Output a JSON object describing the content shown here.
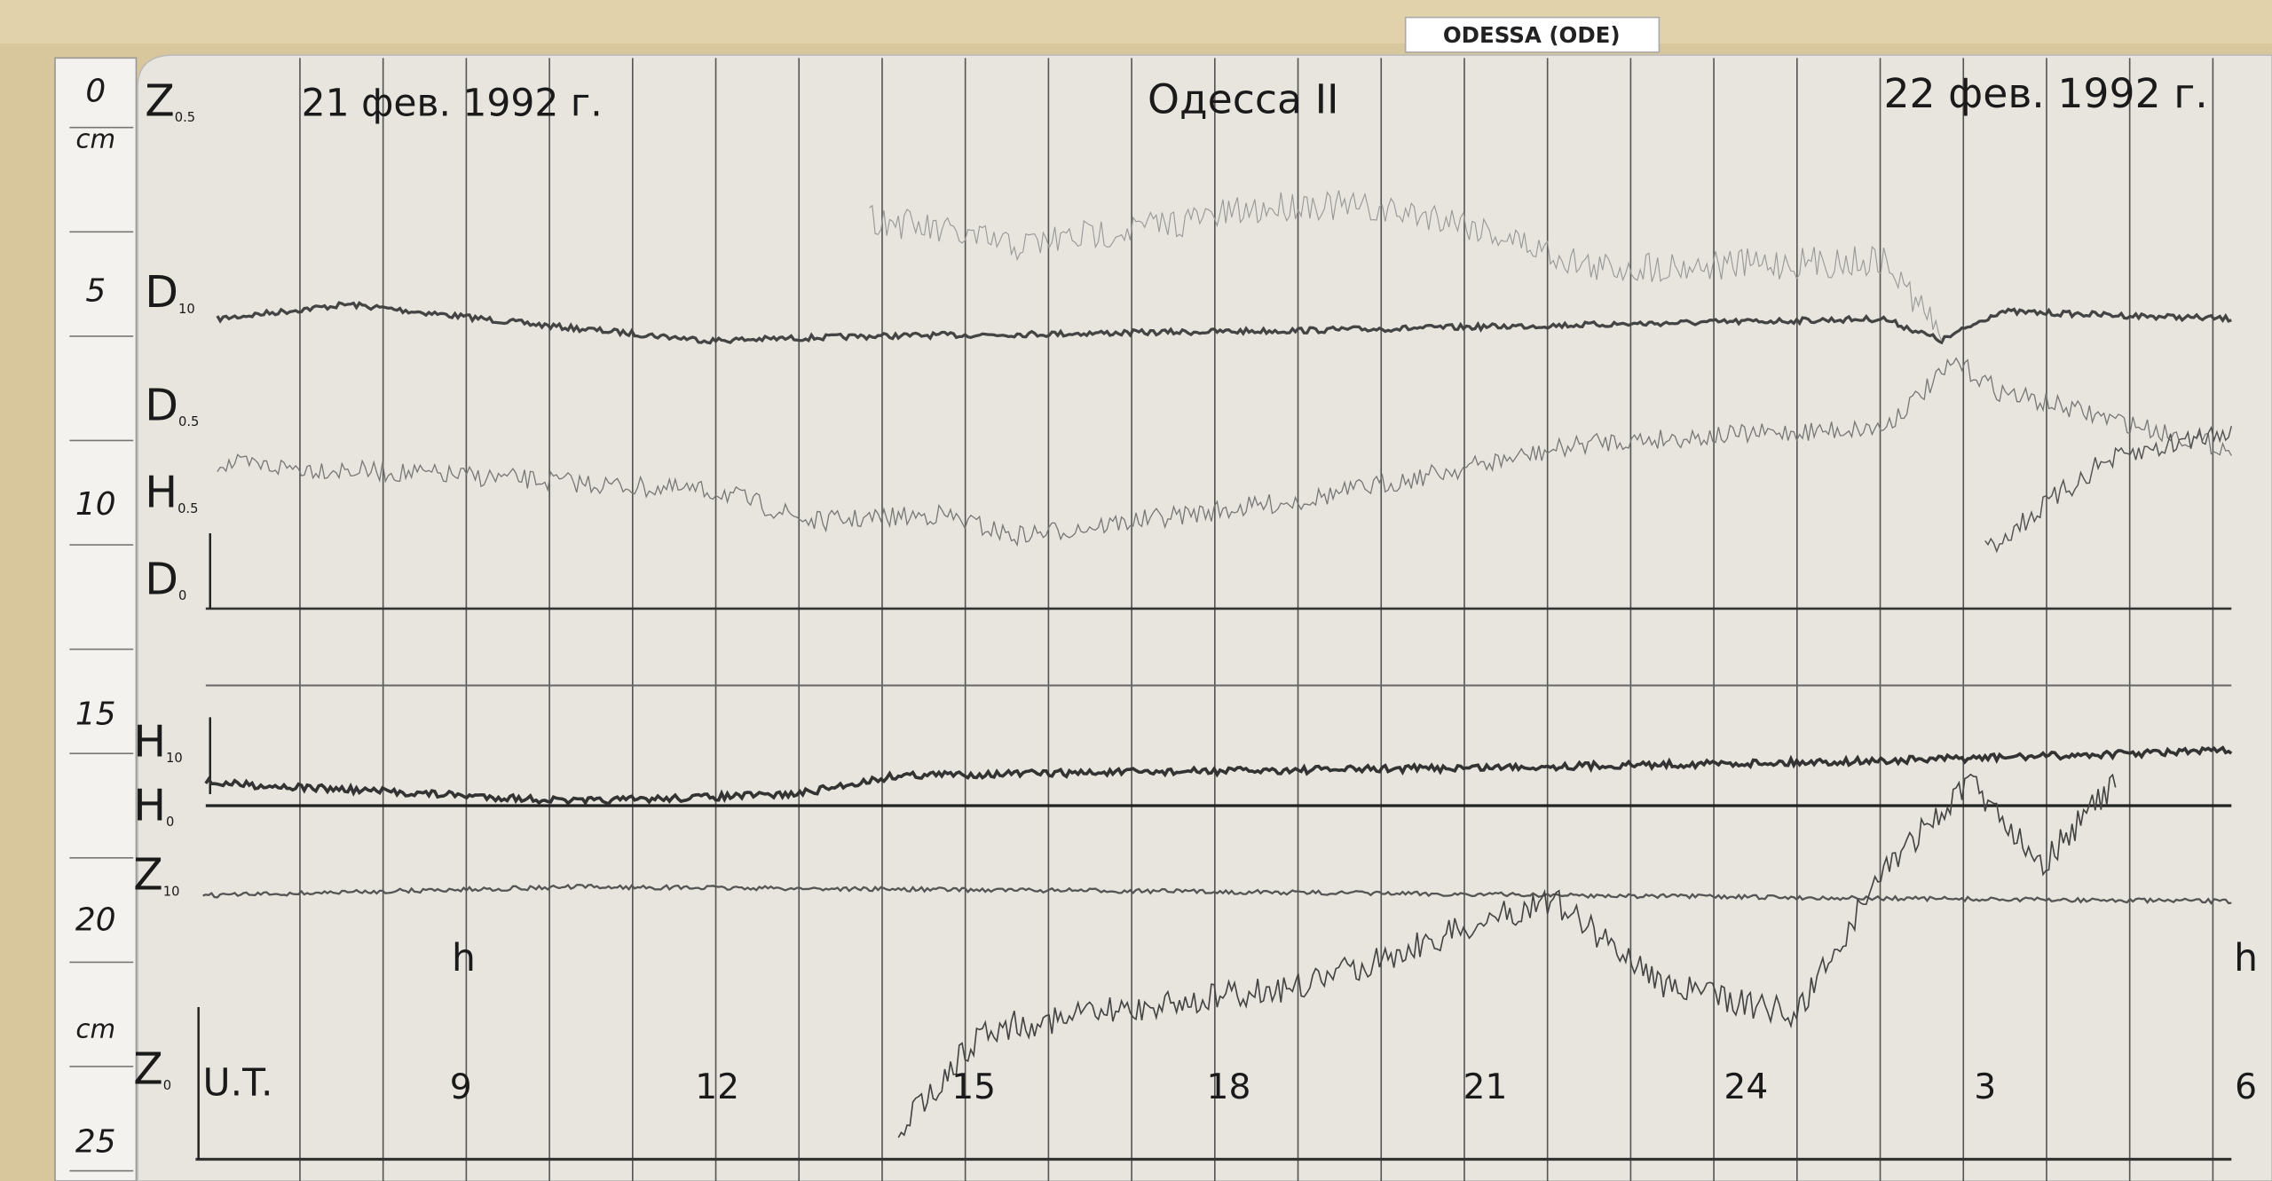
{
  "label": "ODESSA (ODE)",
  "header": {
    "date_left": "21 фев. 1992 г.",
    "station": "Одесса II",
    "date_right": "22 фев. 1992 г."
  },
  "ruler": [
    "0",
    "cm",
    "5",
    "10",
    "15",
    "20",
    "cm",
    "25"
  ],
  "traces": [
    {
      "name": "Z",
      "sub": "0.5"
    },
    {
      "name": "D",
      "sub": "10"
    },
    {
      "name": "D",
      "sub": "0.5"
    },
    {
      "name": "H",
      "sub": "0.5"
    },
    {
      "name": "D",
      "sub": "0"
    },
    {
      "name": "H",
      "sub": "10"
    },
    {
      "name": "H",
      "sub": "0"
    },
    {
      "name": "Z",
      "sub": "10"
    },
    {
      "name": "Z",
      "sub": "0"
    }
  ],
  "time_label": "U.T.",
  "hours": [
    "9",
    "12",
    "15",
    "18",
    "21",
    "24",
    "3",
    "6"
  ],
  "hour_marks": [
    "h",
    "h"
  ]
}
